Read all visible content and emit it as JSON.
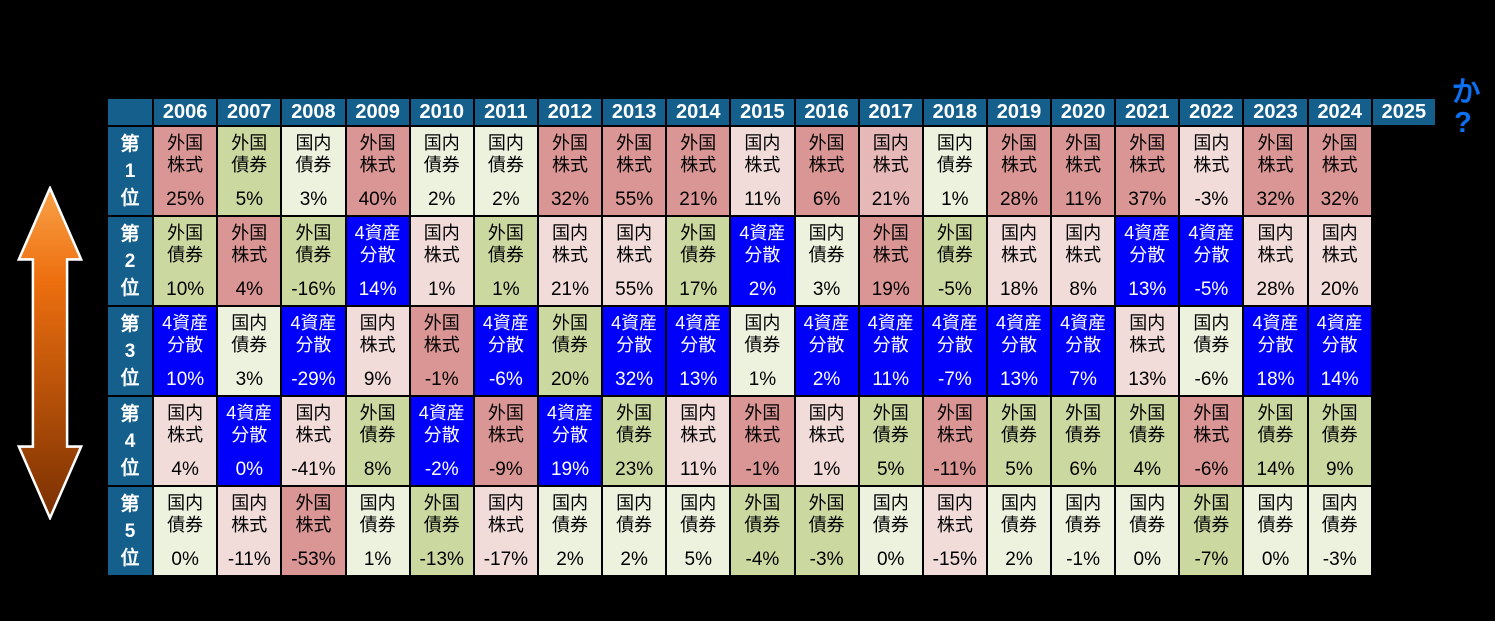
{
  "side_caption": "今後の順位と収益率を当てられますか?",
  "colors": {
    "page_bg": "#000000",
    "header_bg": "#155F8D",
    "header_fg": "#FFFFFF",
    "grid": "#000000",
    "side_text": "#0C70F0",
    "arrow_top": "#F9A148",
    "arrow_mid": "#ED6F0F",
    "arrow_bottom": "#7A3002",
    "arrow_outline": "#FFFFFF"
  },
  "assets": {
    "外国株式": {
      "bg": "#DA9694",
      "fg": "#000000",
      "lines": [
        "外国",
        "株式"
      ]
    },
    "外国債券": {
      "bg": "#CBD9A0",
      "fg": "#000000",
      "lines": [
        "外国",
        "債券"
      ]
    },
    "国内株式": {
      "bg": "#F1DCDA",
      "fg": "#000000",
      "lines": [
        "国内",
        "株式"
      ]
    },
    "国内債券": {
      "bg": "#EDF2DF",
      "fg": "#000000",
      "lines": [
        "国内",
        "債券"
      ]
    },
    "4資産分散": {
      "bg": "#0101FB",
      "fg": "#FFFFFF",
      "lines": [
        "4資産",
        "分散"
      ]
    }
  },
  "chart_data": {
    "type": "table",
    "title": "",
    "columns": [
      "2006",
      "2007",
      "2008",
      "2009",
      "2010",
      "2011",
      "2012",
      "2013",
      "2014",
      "2015",
      "2016",
      "2017",
      "2018",
      "2019",
      "2020",
      "2021",
      "2022",
      "2023",
      "2024",
      "2025"
    ],
    "row_labels": [
      "第1位",
      "第2位",
      "第3位",
      "第4位",
      "第5位"
    ],
    "unit": "%",
    "note_empty_column": "2025",
    "cells": [
      [
        {
          "a": "外国株式",
          "p": 25
        },
        {
          "a": "外国債券",
          "p": 5
        },
        {
          "a": "国内債券",
          "p": 3
        },
        {
          "a": "外国株式",
          "p": 40
        },
        {
          "a": "国内債券",
          "p": 2
        },
        {
          "a": "国内債券",
          "p": 2
        },
        {
          "a": "外国株式",
          "p": 32
        },
        {
          "a": "外国株式",
          "p": 55
        },
        {
          "a": "外国株式",
          "p": 21
        },
        {
          "a": "国内株式",
          "p": 11
        },
        {
          "a": "外国株式",
          "p": 6
        },
        {
          "a": "国内株式",
          "p": 21,
          "bg": "#E6B8B7"
        },
        {
          "a": "国内債券",
          "p": 1
        },
        {
          "a": "外国株式",
          "p": 28
        },
        {
          "a": "外国株式",
          "p": 11
        },
        {
          "a": "外国株式",
          "p": 37
        },
        {
          "a": "国内株式",
          "p": -3
        },
        {
          "a": "外国株式",
          "p": 32
        },
        {
          "a": "外国株式",
          "p": 32
        }
      ],
      [
        {
          "a": "外国債券",
          "p": 10
        },
        {
          "a": "外国株式",
          "p": 4
        },
        {
          "a": "外国債券",
          "p": -16
        },
        {
          "a": "4資産分散",
          "p": 14
        },
        {
          "a": "国内株式",
          "p": 1
        },
        {
          "a": "外国債券",
          "p": 1
        },
        {
          "a": "国内株式",
          "p": 21
        },
        {
          "a": "国内株式",
          "p": 55
        },
        {
          "a": "外国債券",
          "p": 17
        },
        {
          "a": "4資産分散",
          "p": 2
        },
        {
          "a": "国内債券",
          "p": 3
        },
        {
          "a": "外国株式",
          "p": 19
        },
        {
          "a": "外国債券",
          "p": -5
        },
        {
          "a": "国内株式",
          "p": 18
        },
        {
          "a": "国内株式",
          "p": 8
        },
        {
          "a": "4資産分散",
          "p": 13
        },
        {
          "a": "4資産分散",
          "p": -5
        },
        {
          "a": "国内株式",
          "p": 28
        },
        {
          "a": "国内株式",
          "p": 20
        }
      ],
      [
        {
          "a": "4資産分散",
          "p": 10
        },
        {
          "a": "国内債券",
          "p": 3
        },
        {
          "a": "4資産分散",
          "p": -29
        },
        {
          "a": "国内株式",
          "p": 9
        },
        {
          "a": "外国株式",
          "p": -1
        },
        {
          "a": "4資産分散",
          "p": -6
        },
        {
          "a": "外国債券",
          "p": 20
        },
        {
          "a": "4資産分散",
          "p": 32
        },
        {
          "a": "4資産分散",
          "p": 13
        },
        {
          "a": "国内債券",
          "p": 1
        },
        {
          "a": "4資産分散",
          "p": 2
        },
        {
          "a": "4資産分散",
          "p": 11
        },
        {
          "a": "4資産分散",
          "p": -7
        },
        {
          "a": "4資産分散",
          "p": 13
        },
        {
          "a": "4資産分散",
          "p": 7
        },
        {
          "a": "国内株式",
          "p": 13
        },
        {
          "a": "国内債券",
          "p": -6
        },
        {
          "a": "4資産分散",
          "p": 18
        },
        {
          "a": "4資産分散",
          "p": 14
        }
      ],
      [
        {
          "a": "国内株式",
          "p": 4
        },
        {
          "a": "4資産分散",
          "p": 0
        },
        {
          "a": "国内株式",
          "p": -41
        },
        {
          "a": "外国債券",
          "p": 8
        },
        {
          "a": "4資産分散",
          "p": -2
        },
        {
          "a": "外国株式",
          "p": -9
        },
        {
          "a": "4資産分散",
          "p": 19
        },
        {
          "a": "外国債券",
          "p": 23
        },
        {
          "a": "国内株式",
          "p": 11
        },
        {
          "a": "外国株式",
          "p": -1
        },
        {
          "a": "国内株式",
          "p": 1
        },
        {
          "a": "外国債券",
          "p": 5
        },
        {
          "a": "外国株式",
          "p": -11
        },
        {
          "a": "外国債券",
          "p": 5
        },
        {
          "a": "外国債券",
          "p": 6
        },
        {
          "a": "外国債券",
          "p": 4
        },
        {
          "a": "外国株式",
          "p": -6
        },
        {
          "a": "外国債券",
          "p": 14
        },
        {
          "a": "外国債券",
          "p": 9
        }
      ],
      [
        {
          "a": "国内債券",
          "p": 0
        },
        {
          "a": "国内株式",
          "p": -11
        },
        {
          "a": "外国株式",
          "p": -53
        },
        {
          "a": "国内債券",
          "p": 1
        },
        {
          "a": "外国債券",
          "p": -13
        },
        {
          "a": "国内株式",
          "p": -17
        },
        {
          "a": "国内債券",
          "p": 2
        },
        {
          "a": "国内債券",
          "p": 2
        },
        {
          "a": "国内債券",
          "p": 5
        },
        {
          "a": "外国債券",
          "p": -4
        },
        {
          "a": "外国債券",
          "p": -3
        },
        {
          "a": "国内債券",
          "p": 0
        },
        {
          "a": "国内株式",
          "p": -15
        },
        {
          "a": "国内債券",
          "p": 2
        },
        {
          "a": "国内債券",
          "p": -1
        },
        {
          "a": "国内債券",
          "p": 0
        },
        {
          "a": "外国債券",
          "p": -7
        },
        {
          "a": "国内債券",
          "p": 0
        },
        {
          "a": "国内債券",
          "p": -3
        }
      ]
    ]
  }
}
